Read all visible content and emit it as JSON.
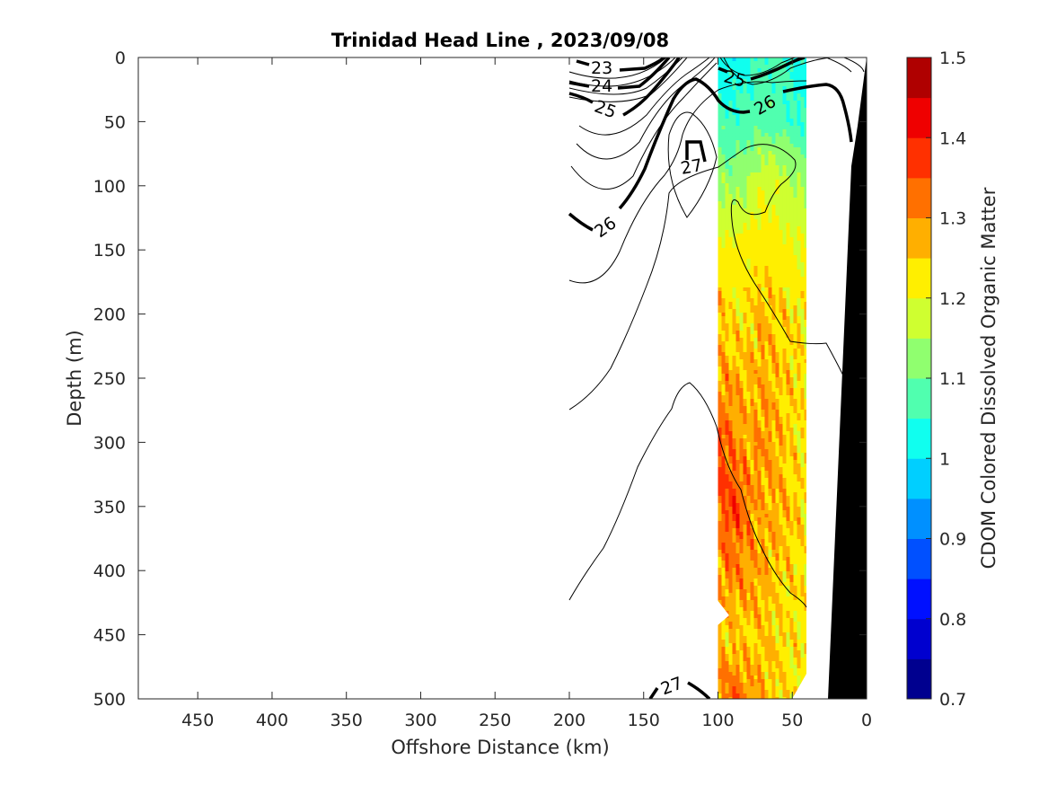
{
  "chart_data": {
    "type": "heatmap",
    "title": "Trinidad Head Line , 2023/09/08",
    "xlabel": "Offshore Distance (km)",
    "ylabel": "Depth (m)",
    "colorbar_label": "CDOM Colored Dissolved Organic Matter",
    "xlim": [
      490,
      0
    ],
    "ylim": [
      0,
      500
    ],
    "x_reversed": true,
    "y_reversed": true,
    "xticks": [
      450,
      400,
      350,
      300,
      250,
      200,
      150,
      100,
      50,
      0
    ],
    "yticks": [
      0,
      50,
      100,
      150,
      200,
      250,
      300,
      350,
      400,
      450,
      500
    ],
    "colorbar": {
      "range": [
        0.7,
        1.5
      ],
      "ticks": [
        0.7,
        0.8,
        0.9,
        1,
        1.1,
        1.2,
        1.3,
        1.4,
        1.5
      ],
      "tick_labels": [
        "0.7",
        "0.8",
        "0.9",
        "1",
        "1.1",
        "1.2",
        "1.3",
        "1.4",
        "1.5"
      ],
      "levels": 16,
      "colors": [
        "#00008f",
        "#0000cf",
        "#0010ff",
        "#0050ff",
        "#0090ff",
        "#00cfff",
        "#10ffef",
        "#50ffaf",
        "#90ff6f",
        "#cfff30",
        "#ffef00",
        "#ffaf00",
        "#ff7000",
        "#ff3000",
        "#ef0000",
        "#af0000"
      ]
    },
    "cdom_field": {
      "x": [
        100,
        90,
        80,
        70,
        60,
        50,
        40
      ],
      "depth": [
        0,
        50,
        100,
        150,
        200,
        250,
        300,
        350,
        400,
        450,
        500
      ],
      "values": [
        [
          1.02,
          1.02,
          1.04,
          1.06,
          1.06,
          1.04,
          1.02
        ],
        [
          1.08,
          1.06,
          1.07,
          1.08,
          1.08,
          1.06,
          1.05
        ],
        [
          1.14,
          1.13,
          1.15,
          1.2,
          1.19,
          1.16,
          1.15
        ],
        [
          1.21,
          1.22,
          1.22,
          1.23,
          1.22,
          1.21,
          1.2
        ],
        [
          1.26,
          1.22,
          1.24,
          1.27,
          1.25,
          1.23,
          1.22
        ],
        [
          1.3,
          1.28,
          1.26,
          1.28,
          1.26,
          1.25,
          1.22
        ],
        [
          1.36,
          1.32,
          1.28,
          1.3,
          1.28,
          1.24,
          1.22
        ],
        [
          1.33,
          1.38,
          1.31,
          1.27,
          1.28,
          1.26,
          1.23
        ],
        [
          1.3,
          1.31,
          1.3,
          1.28,
          1.25,
          1.24,
          1.22
        ],
        [
          1.26,
          1.24,
          1.25,
          1.26,
          1.24,
          1.23,
          1.22
        ],
        [
          1.3,
          1.35,
          1.3,
          1.27,
          1.25,
          1.22,
          1.22
        ]
      ]
    },
    "density_contours": [
      {
        "level": 23,
        "label": "23"
      },
      {
        "level": 24,
        "label": "24"
      },
      {
        "level": 25,
        "label": "25"
      },
      {
        "level": 26,
        "label": "26"
      },
      {
        "level": 27,
        "label": "27"
      }
    ],
    "bathymetry": {
      "color": "#000000",
      "bottom_depth_at_x": [
        [
          0,
          0
        ],
        [
          10,
          90
        ],
        [
          25,
          500
        ]
      ]
    }
  }
}
